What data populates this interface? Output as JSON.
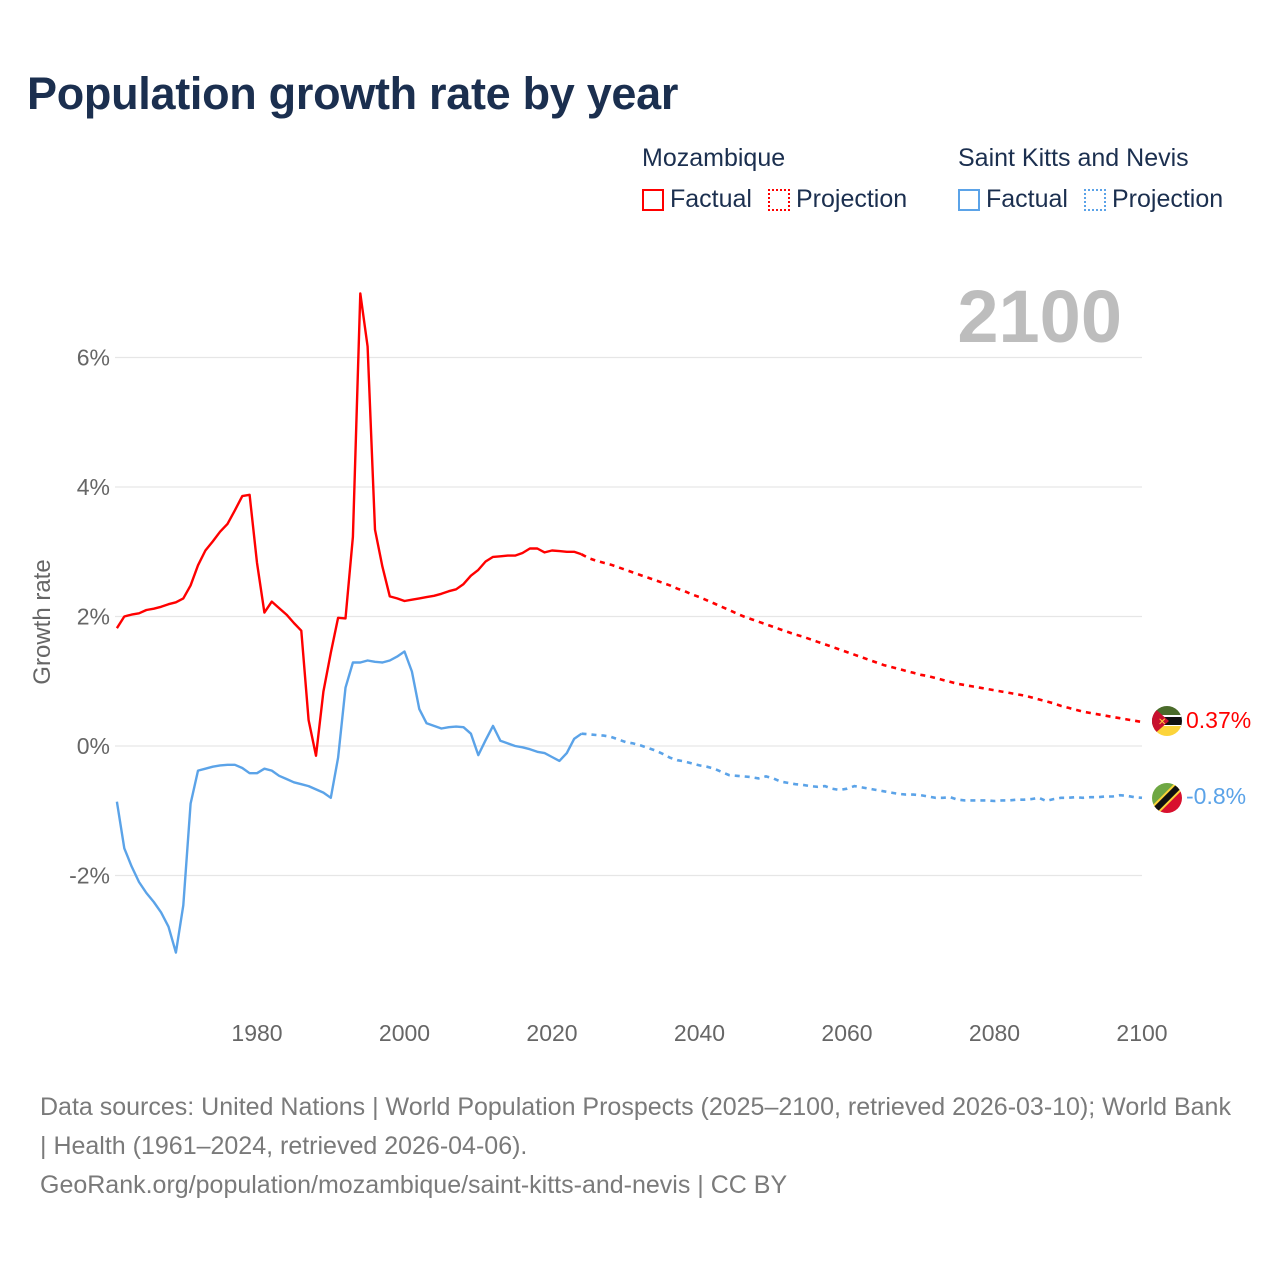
{
  "title": "Population growth rate by year",
  "legend": {
    "groups": [
      {
        "country": "Mozambique",
        "factual": "Factual",
        "projection": "Projection",
        "color": "#ff0000"
      },
      {
        "country": "Saint Kitts and Nevis",
        "factual": "Factual",
        "projection": "Projection",
        "color": "#5ba3e8"
      }
    ]
  },
  "year_display": "2100",
  "footer": {
    "sources": "Data sources: United Nations | World Population Prospects (2025–2100, retrieved 2026-03-10); World Bank | Health (1961–2024, retrieved 2026-04-06).",
    "link": "GeoRank.org/population/mozambique/saint-kitts-and-nevis | CC BY"
  },
  "chart_data": {
    "type": "line",
    "title": "Population growth rate by year",
    "xlabel": "",
    "ylabel": "Growth rate",
    "xlim": [
      1961,
      2100
    ],
    "ylim": [
      -4,
      7
    ],
    "x_ticks": [
      1980,
      2000,
      2020,
      2040,
      2060,
      2080,
      2100
    ],
    "x_tick_labels": [
      "1980",
      "2000",
      "2020",
      "2040",
      "2060",
      "2080",
      "2100"
    ],
    "y_ticks": [
      6,
      4,
      2,
      0,
      -2
    ],
    "y_tick_labels": [
      "6%",
      "4%",
      "2%",
      "0%",
      "-2%"
    ],
    "grid": true,
    "legend_position": "top-right",
    "factual_start": 1961,
    "projection_start": 2025,
    "series": [
      {
        "name": "Mozambique",
        "color": "#ff0000",
        "end_label": "0.37%",
        "factual": [
          1.82,
          2.0,
          2.03,
          2.05,
          2.1,
          2.12,
          2.15,
          2.19,
          2.22,
          2.28,
          2.48,
          2.79,
          3.02,
          3.16,
          3.31,
          3.43,
          3.64,
          3.86,
          3.88,
          2.83,
          2.06,
          2.23,
          2.13,
          2.03,
          1.9,
          1.78,
          0.4,
          -0.15,
          0.84,
          1.44,
          1.98,
          1.97,
          3.23,
          6.99,
          6.17,
          3.34,
          2.77,
          2.31,
          2.28,
          2.24,
          2.26,
          2.28,
          2.3,
          2.32,
          2.35,
          2.39,
          2.42,
          2.5,
          2.63,
          2.72,
          2.85,
          2.92,
          2.93,
          2.94,
          2.94,
          2.98,
          3.05,
          3.05,
          2.99,
          3.02,
          3.01,
          3.0,
          3.0,
          2.96
        ],
        "projection": [
          2.9,
          2.86,
          2.83,
          2.8,
          2.76,
          2.72,
          2.68,
          2.64,
          2.6,
          2.56,
          2.52,
          2.48,
          2.43,
          2.39,
          2.34,
          2.3,
          2.25,
          2.2,
          2.15,
          2.1,
          2.05,
          2.0,
          1.96,
          1.92,
          1.88,
          1.84,
          1.8,
          1.76,
          1.72,
          1.69,
          1.65,
          1.61,
          1.57,
          1.53,
          1.49,
          1.45,
          1.41,
          1.37,
          1.33,
          1.29,
          1.25,
          1.22,
          1.19,
          1.16,
          1.13,
          1.1,
          1.08,
          1.05,
          1.02,
          0.99,
          0.96,
          0.94,
          0.92,
          0.9,
          0.88,
          0.86,
          0.84,
          0.82,
          0.8,
          0.78,
          0.75,
          0.72,
          0.69,
          0.66,
          0.62,
          0.59,
          0.56,
          0.53,
          0.51,
          0.49,
          0.47,
          0.45,
          0.43,
          0.41,
          0.39,
          0.37
        ]
      },
      {
        "name": "Saint Kitts and Nevis",
        "color": "#5ba3e8",
        "end_label": "-0.8%",
        "factual": [
          -0.86,
          -1.58,
          -1.86,
          -2.1,
          -2.27,
          -2.41,
          -2.57,
          -2.79,
          -3.19,
          -2.46,
          -0.89,
          -0.38,
          -0.35,
          -0.32,
          -0.3,
          -0.29,
          -0.29,
          -0.34,
          -0.42,
          -0.42,
          -0.35,
          -0.38,
          -0.46,
          -0.51,
          -0.56,
          -0.59,
          -0.62,
          -0.67,
          -0.72,
          -0.8,
          -0.18,
          0.9,
          1.29,
          1.29,
          1.32,
          1.3,
          1.29,
          1.32,
          1.38,
          1.46,
          1.15,
          0.57,
          0.35,
          0.31,
          0.27,
          0.29,
          0.3,
          0.29,
          0.19,
          -0.14,
          0.09,
          0.31,
          0.08,
          0.04,
          0.0,
          -0.02,
          -0.05,
          -0.09,
          -0.11,
          -0.17,
          -0.23,
          -0.11,
          0.11,
          0.19
        ],
        "projection": [
          0.18,
          0.17,
          0.16,
          0.14,
          0.1,
          0.06,
          0.04,
          0.01,
          -0.03,
          -0.07,
          -0.12,
          -0.18,
          -0.22,
          -0.24,
          -0.27,
          -0.3,
          -0.32,
          -0.35,
          -0.4,
          -0.45,
          -0.46,
          -0.47,
          -0.48,
          -0.5,
          -0.47,
          -0.5,
          -0.55,
          -0.57,
          -0.59,
          -0.6,
          -0.62,
          -0.63,
          -0.62,
          -0.66,
          -0.68,
          -0.66,
          -0.62,
          -0.64,
          -0.66,
          -0.68,
          -0.7,
          -0.72,
          -0.74,
          -0.75,
          -0.75,
          -0.76,
          -0.78,
          -0.8,
          -0.8,
          -0.79,
          -0.83,
          -0.84,
          -0.84,
          -0.84,
          -0.84,
          -0.85,
          -0.84,
          -0.84,
          -0.83,
          -0.83,
          -0.82,
          -0.8,
          -0.85,
          -0.82,
          -0.8,
          -0.8,
          -0.79,
          -0.8,
          -0.79,
          -0.79,
          -0.78,
          -0.78,
          -0.76,
          -0.77,
          -0.79,
          -0.8
        ]
      }
    ]
  }
}
